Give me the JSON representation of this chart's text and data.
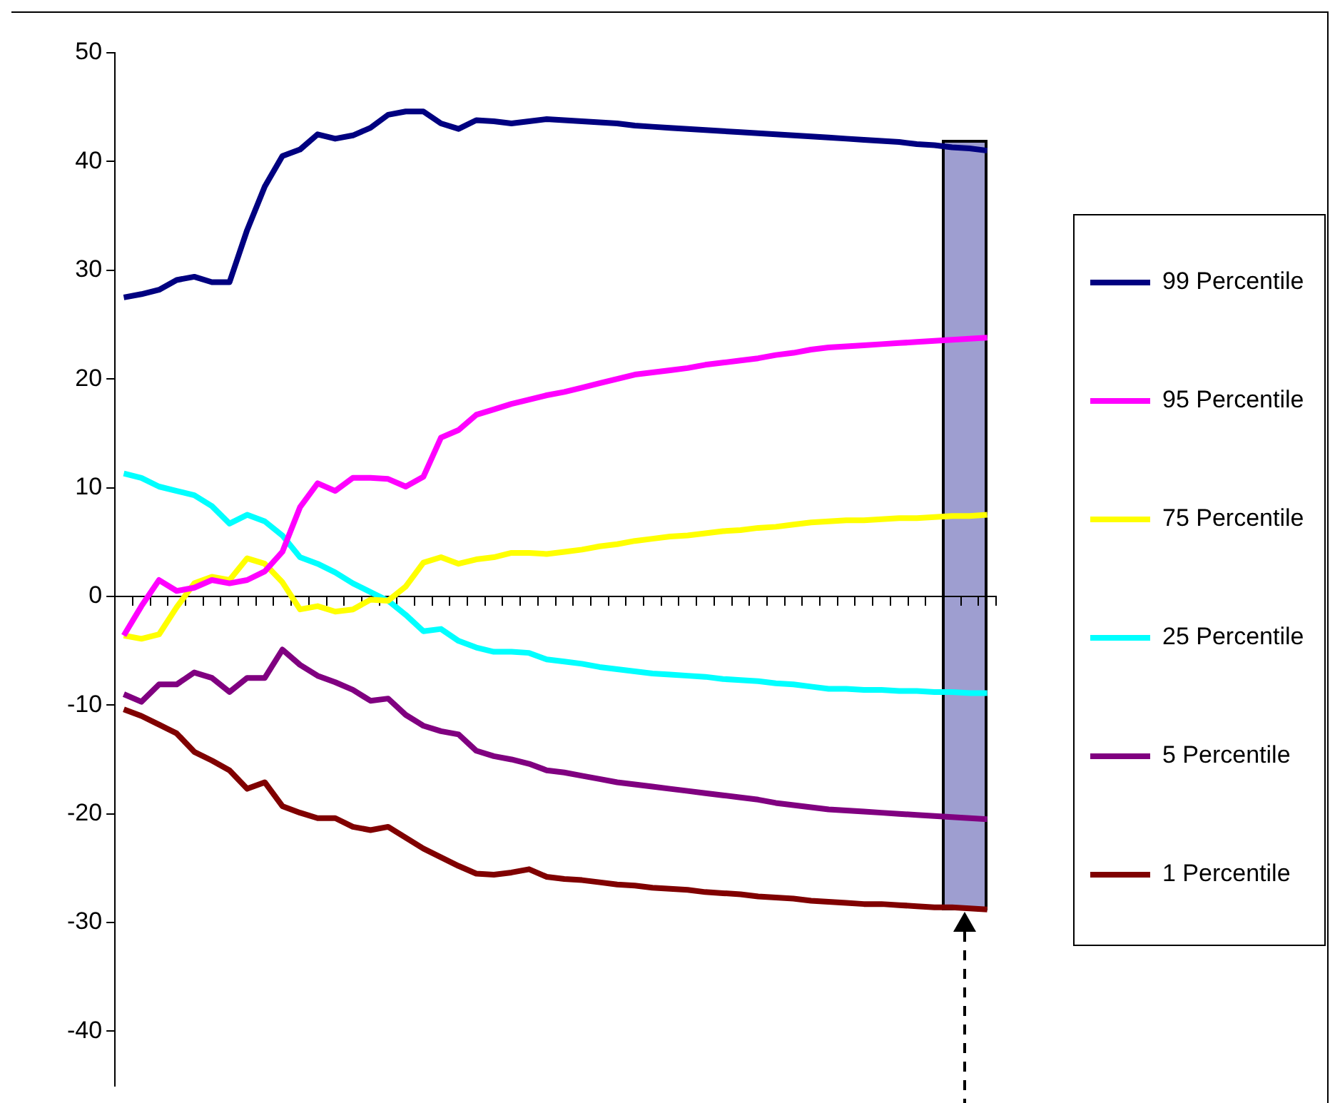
{
  "chart_data": {
    "type": "line",
    "categories": [
      null,
      null,
      null,
      null,
      null,
      null,
      null,
      null,
      null,
      null,
      null,
      null,
      null,
      null,
      null,
      null,
      null,
      null,
      null,
      null,
      null,
      null,
      null,
      null,
      null,
      null,
      null,
      null,
      null,
      null,
      null,
      null,
      null,
      null,
      null,
      null,
      null,
      null,
      null,
      null,
      null,
      null,
      null,
      null,
      null,
      null,
      null,
      null,
      null,
      null
    ],
    "series": [
      {
        "name": "99 Percentile",
        "color": "#000080",
        "values": [
          27.5,
          27.8,
          28.2,
          29.1,
          29.4,
          28.9,
          28.9,
          33.7,
          37.7,
          40.5,
          41.1,
          42.5,
          42.1,
          42.4,
          43.1,
          44.3,
          44.6,
          44.6,
          43.5,
          43.0,
          43.8,
          43.7,
          43.5,
          43.7,
          43.9,
          43.8,
          43.7,
          43.6,
          43.5,
          43.3,
          43.2,
          43.1,
          43.0,
          42.9,
          42.8,
          42.7,
          42.6,
          42.5,
          42.4,
          42.3,
          42.2,
          42.1,
          42.0,
          41.9,
          41.8,
          41.6,
          41.5,
          41.3,
          41.2,
          41.0
        ]
      },
      {
        "name": "95 Percentile",
        "color": "#ff00ff",
        "values": [
          -3.6,
          -0.9,
          1.5,
          0.5,
          0.8,
          1.5,
          1.2,
          1.5,
          2.3,
          4.1,
          8.2,
          10.4,
          9.7,
          10.9,
          10.9,
          10.8,
          10.1,
          11.0,
          14.6,
          15.3,
          16.7,
          17.2,
          17.7,
          18.1,
          18.5,
          18.8,
          19.2,
          19.6,
          20.0,
          20.4,
          20.6,
          20.8,
          21.0,
          21.3,
          21.5,
          21.7,
          21.9,
          22.2,
          22.4,
          22.7,
          22.9,
          23.0,
          23.1,
          23.2,
          23.3,
          23.4,
          23.5,
          23.6,
          23.7,
          23.8
        ]
      },
      {
        "name": "75 Percentile",
        "color": "#ffff00",
        "values": [
          -3.6,
          -3.9,
          -3.5,
          -1.0,
          1.2,
          1.8,
          1.5,
          3.5,
          3.0,
          1.3,
          -1.2,
          -0.9,
          -1.4,
          -1.2,
          -0.3,
          -0.4,
          0.9,
          3.1,
          3.6,
          3.0,
          3.4,
          3.6,
          4.0,
          4.0,
          3.9,
          4.1,
          4.3,
          4.6,
          4.8,
          5.1,
          5.3,
          5.5,
          5.6,
          5.8,
          6.0,
          6.1,
          6.3,
          6.4,
          6.6,
          6.8,
          6.9,
          7.0,
          7.0,
          7.1,
          7.2,
          7.2,
          7.3,
          7.4,
          7.4,
          7.5
        ]
      },
      {
        "name": "25 Percentile",
        "color": "#00ffff",
        "values": [
          11.3,
          10.9,
          10.1,
          9.7,
          9.3,
          8.3,
          6.7,
          7.5,
          6.9,
          5.6,
          3.6,
          3.0,
          2.2,
          1.2,
          0.4,
          -0.4,
          -1.7,
          -3.2,
          -3.0,
          -4.1,
          -4.7,
          -5.1,
          -5.1,
          -5.2,
          -5.8,
          -6.0,
          -6.2,
          -6.5,
          -6.7,
          -6.9,
          -7.1,
          -7.2,
          -7.3,
          -7.4,
          -7.6,
          -7.7,
          -7.8,
          -8.0,
          -8.1,
          -8.3,
          -8.5,
          -8.5,
          -8.6,
          -8.6,
          -8.7,
          -8.7,
          -8.8,
          -8.8,
          -8.9,
          -8.9
        ]
      },
      {
        "name": "5 Percentile",
        "color": "#800080",
        "values": [
          -9.0,
          -9.7,
          -8.1,
          -8.1,
          -7.0,
          -7.5,
          -8.8,
          -7.5,
          -7.5,
          -4.9,
          -6.3,
          -7.3,
          -7.9,
          -8.6,
          -9.6,
          -9.4,
          -10.9,
          -11.9,
          -12.4,
          -12.7,
          -14.2,
          -14.7,
          -15.0,
          -15.4,
          -16.0,
          -16.2,
          -16.5,
          -16.8,
          -17.1,
          -17.3,
          -17.5,
          -17.7,
          -17.9,
          -18.1,
          -18.3,
          -18.5,
          -18.7,
          -19.0,
          -19.2,
          -19.4,
          -19.6,
          -19.7,
          -19.8,
          -19.9,
          -20.0,
          -20.1,
          -20.2,
          -20.3,
          -20.4,
          -20.5
        ]
      },
      {
        "name": "1 Percentile",
        "color": "#800000",
        "values": [
          -10.4,
          -11.0,
          -11.8,
          -12.6,
          -14.3,
          -15.1,
          -16.0,
          -17.7,
          -17.1,
          -19.3,
          -19.9,
          -20.4,
          -20.4,
          -21.2,
          -21.5,
          -21.2,
          -22.2,
          -23.2,
          -24.0,
          -24.8,
          -25.5,
          -25.6,
          -25.4,
          -25.1,
          -25.8,
          -26.0,
          -26.1,
          -26.3,
          -26.5,
          -26.6,
          -26.8,
          -26.9,
          -27.0,
          -27.2,
          -27.3,
          -27.4,
          -27.6,
          -27.7,
          -27.8,
          -28.0,
          -28.1,
          -28.2,
          -28.3,
          -28.3,
          -28.4,
          -28.5,
          -28.6,
          -28.6,
          -28.7,
          -28.8
        ]
      }
    ],
    "ylim": [
      -45,
      50
    ],
    "yticks": [
      -40,
      -30,
      -20,
      -10,
      0,
      10,
      20,
      30,
      40,
      50
    ],
    "legend": "right",
    "tick_labels": "y"
  }
}
